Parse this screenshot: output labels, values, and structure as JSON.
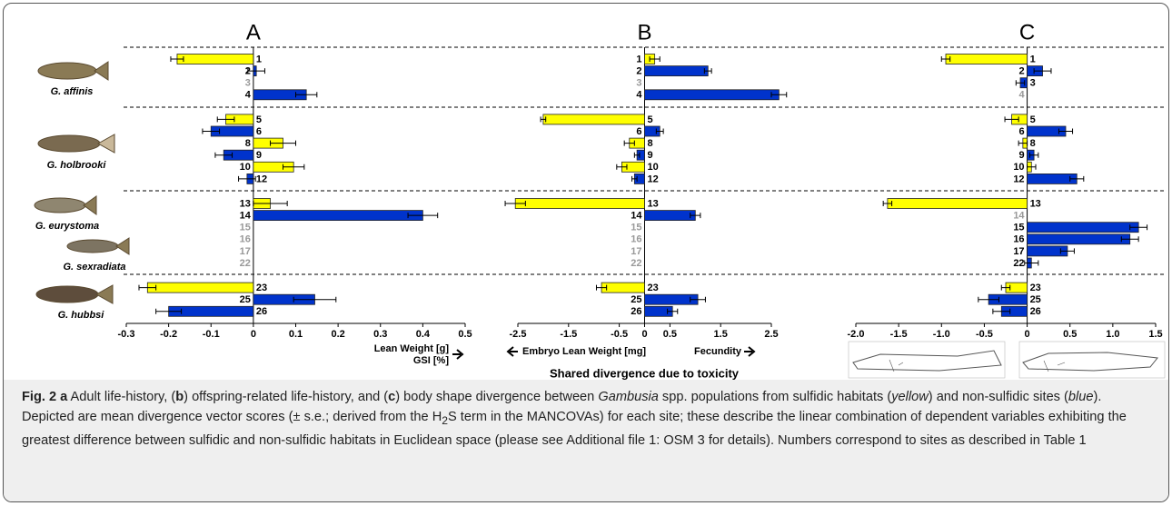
{
  "chart_data": [
    {
      "type": "bar",
      "panel": "A",
      "categories": [
        "1",
        "2",
        "3",
        "4",
        "5",
        "6",
        "8",
        "9",
        "10",
        "12",
        "13",
        "14",
        "15",
        "16",
        "17",
        "22",
        "23",
        "25",
        "26"
      ],
      "values": [
        -0.18,
        0.007,
        null,
        0.125,
        -0.065,
        -0.1,
        0.07,
        -0.07,
        0.095,
        -0.015,
        0.04,
        0.4,
        null,
        null,
        null,
        null,
        -0.25,
        0.145,
        -0.2
      ],
      "errors": [
        0.015,
        0.02,
        null,
        0.025,
        0.02,
        0.02,
        0.03,
        0.02,
        0.025,
        0.02,
        0.04,
        0.035,
        null,
        null,
        null,
        null,
        0.02,
        0.05,
        0.03
      ],
      "colors": [
        "#ffff00",
        "#0033cc",
        "#0033cc",
        "#0033cc",
        "#ffff00",
        "#0033cc",
        "#ffff00",
        "#0033cc",
        "#ffff00",
        "#0033cc",
        "#ffff00",
        "#0033cc",
        "#0033cc",
        "#0033cc",
        "#0033cc",
        "#0033cc",
        "#ffff00",
        "#0033cc",
        "#0033cc"
      ],
      "xlim": [
        -0.3,
        0.5
      ],
      "xticks": [
        -0.3,
        -0.2,
        -0.1,
        0,
        0.1,
        0.2,
        0.3,
        0.4,
        0.5
      ],
      "xlabel": [
        "Lean Weight [g]",
        "GSI [%]"
      ]
    },
    {
      "type": "bar",
      "panel": "B",
      "categories": [
        "1",
        "2",
        "3",
        "4",
        "5",
        "6",
        "8",
        "9",
        "10",
        "12",
        "13",
        "14",
        "15",
        "16",
        "17",
        "22",
        "23",
        "25",
        "26"
      ],
      "values": [
        0.2,
        1.25,
        null,
        2.65,
        -2.0,
        0.3,
        -0.3,
        -0.15,
        -0.45,
        -0.2,
        -2.55,
        1.0,
        null,
        null,
        null,
        null,
        -0.85,
        1.05,
        0.55
      ],
      "errors": [
        0.1,
        0.07,
        null,
        0.15,
        0.05,
        0.07,
        0.1,
        0.05,
        0.1,
        0.05,
        0.2,
        0.1,
        null,
        null,
        null,
        null,
        0.1,
        0.15,
        0.1
      ],
      "colors": [
        "#ffff00",
        "#0033cc",
        "#0033cc",
        "#0033cc",
        "#ffff00",
        "#0033cc",
        "#ffff00",
        "#0033cc",
        "#ffff00",
        "#0033cc",
        "#ffff00",
        "#0033cc",
        "#0033cc",
        "#0033cc",
        "#0033cc",
        "#0033cc",
        "#ffff00",
        "#0033cc",
        "#0033cc"
      ],
      "xlim": [
        -2.5,
        2.5
      ],
      "xticks": [
        -2.5,
        -1.5,
        -0.5,
        0,
        0.5,
        1.5,
        2.5
      ],
      "xlabel_left": "Embryo Lean Weight [mg]",
      "xlabel_right": "Fecundity"
    },
    {
      "type": "bar",
      "panel": "C",
      "categories": [
        "1",
        "2",
        "3",
        "4",
        "5",
        "6",
        "8",
        "9",
        "10",
        "12",
        "13",
        "14",
        "15",
        "16",
        "17",
        "22",
        "23",
        "25",
        "26"
      ],
      "values": [
        -0.95,
        0.18,
        -0.08,
        null,
        -0.18,
        0.45,
        -0.05,
        0.08,
        0.05,
        0.58,
        -1.63,
        null,
        1.3,
        1.2,
        0.47,
        0.05,
        -0.25,
        -0.45,
        -0.3
      ],
      "errors": [
        0.05,
        0.1,
        0.05,
        null,
        0.08,
        0.08,
        0.05,
        0.05,
        0.05,
        0.08,
        0.05,
        null,
        0.1,
        0.1,
        0.08,
        0.08,
        0.05,
        0.12,
        0.1
      ],
      "colors": [
        "#ffff00",
        "#0033cc",
        "#0033cc",
        "#0033cc",
        "#ffff00",
        "#0033cc",
        "#ffff00",
        "#0033cc",
        "#ffff00",
        "#0033cc",
        "#ffff00",
        "#0033cc",
        "#0033cc",
        "#0033cc",
        "#0033cc",
        "#0033cc",
        "#ffff00",
        "#0033cc",
        "#0033cc"
      ],
      "xlim": [
        -2,
        1.5
      ],
      "xticks": [
        {
          "value": -2,
          "label": "-2.0"
        },
        -1.5,
        {
          "value": -1,
          "label": "-1.0"
        },
        -0.5,
        0,
        0.5,
        {
          "value": 1,
          "label": "1.0"
        },
        1.5
      ]
    }
  ],
  "shared_xlabel": "Shared divergence due to toxicity",
  "species": [
    "G. affinis",
    "G. holbrooki",
    "G. eurystoma",
    "G. sexradiata",
    "G. hubbsi"
  ],
  "caption": {
    "runs": [
      "Fig. 2 a",
      " Adult life-history, (",
      "b",
      ") offspring-related life-history, and (",
      "c",
      ") body shape divergence between ",
      "Gambusia",
      " spp. populations from sulfidic habitats (",
      "yellow",
      ") and non-sulfidic sites (",
      "blue",
      "). Depicted are mean divergence vector scores (± s.e.; derived from the H",
      "2",
      "S term in the MANCOVAs) for each site; these describe the linear combination of dependent variables exhibiting the greatest difference between sulfidic and non-sulfidic habitats in Euclidean space (please see Additional file 1: OSM 3 for details). Numbers correspond to sites as described in Table 1"
    ]
  }
}
